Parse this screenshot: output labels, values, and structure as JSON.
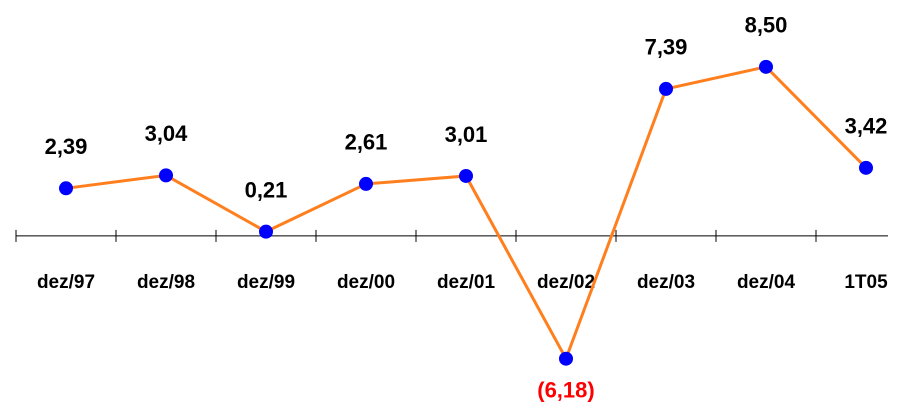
{
  "chart_data": {
    "type": "line",
    "categories": [
      "dez/97",
      "dez/98",
      "dez/99",
      "dez/00",
      "dez/01",
      "dez/02",
      "dez/03",
      "dez/04",
      "1T05"
    ],
    "values": [
      2.39,
      3.04,
      0.21,
      2.61,
      3.01,
      -6.18,
      7.39,
      8.5,
      3.42
    ],
    "value_labels": [
      "2,39",
      "3,04",
      "0,21",
      "2,61",
      "3,01",
      "(6,18)",
      "7,39",
      "8,50",
      "3,42"
    ],
    "color": "#ff7f1e",
    "marker_color": "#0000ff",
    "value_label_color": "#000000",
    "negative_value_label_color": "#ff0000",
    "ylim": [
      -7,
      10
    ]
  }
}
